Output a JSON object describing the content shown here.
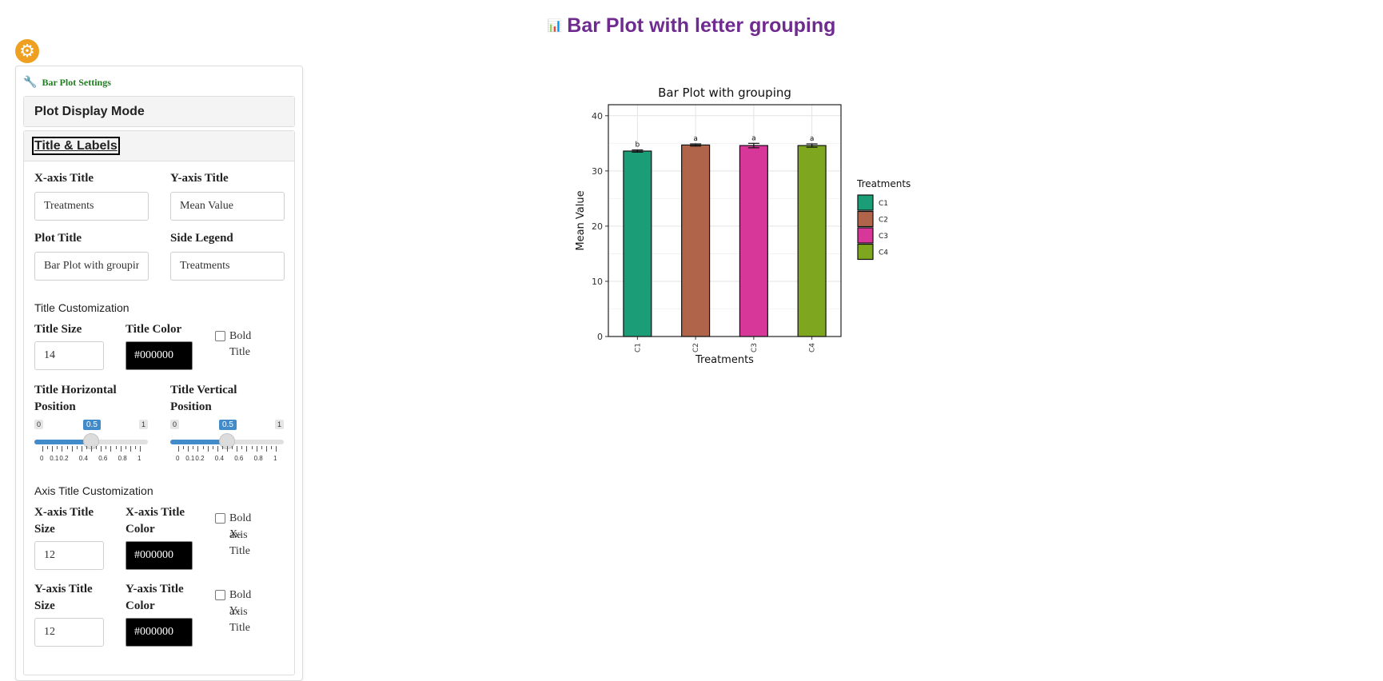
{
  "header": {
    "title": "Bar Plot with letter grouping",
    "icon": "chart-bar-icon"
  },
  "sidebar": {
    "gear_icon": "gear-icon",
    "heading": "Bar Plot Settings",
    "heading_icon": "wrench-icon",
    "accordion": {
      "display_mode_label": "Plot Display Mode",
      "title_labels_label": "Title & Labels"
    },
    "fields": {
      "x_axis_title_label": "X-axis Title",
      "x_axis_title_value": "Treatments",
      "y_axis_title_label": "Y-axis Title",
      "y_axis_title_value": "Mean Value",
      "plot_title_label": "Plot Title",
      "plot_title_value": "Bar Plot with grouping",
      "side_legend_label": "Side Legend",
      "side_legend_value": "Treatments"
    },
    "title_custom": {
      "section": "Title Customization",
      "size_label": "Title Size",
      "size_value": "14",
      "color_label": "Title Color",
      "color_value": "#000000",
      "bold_label": "Bold Title",
      "h_pos_label_1": "Title Horizontal",
      "h_pos_label_2": "Position",
      "v_pos_label_1": "Title Vertical",
      "v_pos_label_2": "Position",
      "slider_min": "0",
      "slider_max": "1",
      "h_pos_value": "0.5",
      "v_pos_value": "0.5",
      "tick_labels": [
        "0",
        "0.1",
        "0.2",
        "0.4",
        "0.6",
        "0.8",
        "1"
      ]
    },
    "axis_custom": {
      "section": "Axis Title Customization",
      "x_size_label_1": "X-axis Title",
      "x_size_label_2": "Size",
      "x_size_value": "12",
      "x_color_label_1": "X-axis Title",
      "x_color_label_2": "Color",
      "x_color_value": "#000000",
      "x_bold_label_1": "Bold X-",
      "x_bold_label_2": "axis Title",
      "y_size_label_1": "Y-axis Title",
      "y_size_label_2": "Size",
      "y_size_value": "12",
      "y_color_label_1": "Y-axis Title",
      "y_color_label_2": "Color",
      "y_color_value": "#000000",
      "y_bold_label_1": "Bold Y-",
      "y_bold_label_2": "axis Title"
    }
  },
  "chart_data": {
    "type": "bar",
    "title": "Bar Plot with grouping",
    "xlabel": "Treatments",
    "ylabel": "Mean Value",
    "categories": [
      "C1",
      "C2",
      "C3",
      "C4"
    ],
    "values": [
      33.6,
      34.7,
      34.6,
      34.6
    ],
    "errors": [
      0.2,
      0.2,
      0.4,
      0.3
    ],
    "letters": [
      "b",
      "a",
      "a",
      "a"
    ],
    "colors": [
      "#1b9e77",
      "#b0654b",
      "#d63799",
      "#7ea61e"
    ],
    "ylim": [
      0,
      42
    ],
    "yticks": [
      0,
      10,
      20,
      30,
      40
    ],
    "legend": {
      "title": "Treatments",
      "entries": [
        "C1",
        "C2",
        "C3",
        "C4"
      ],
      "placement": "right"
    },
    "grid": true
  }
}
